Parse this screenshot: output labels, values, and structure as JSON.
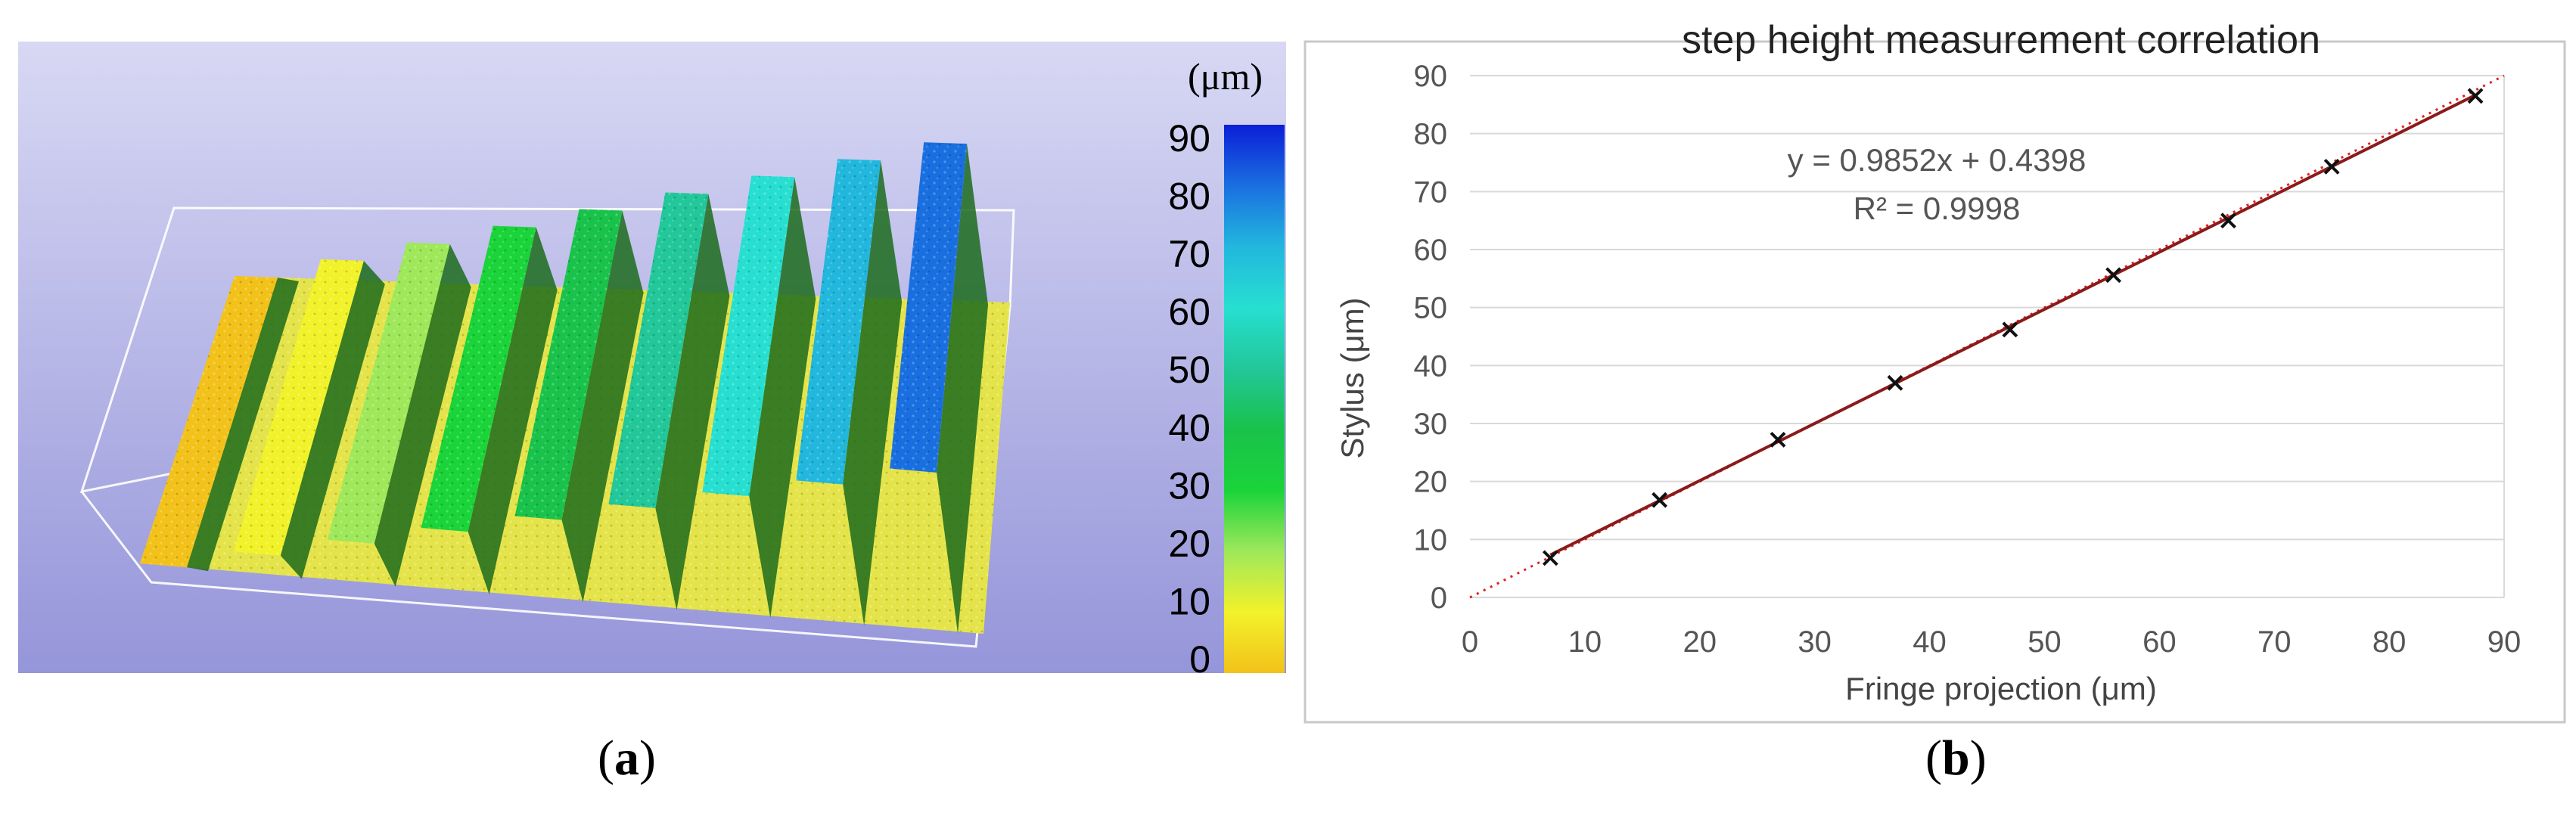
{
  "panel_a": {
    "label_open": "(",
    "label_letter": "a",
    "label_close": ")",
    "colorbar": {
      "unit": "(μm)",
      "ticks": [
        "90",
        "80",
        "70",
        "60",
        "50",
        "40",
        "30",
        "20",
        "10",
        "0"
      ],
      "colors": [
        "#0b1ed8",
        "#1a6fe0",
        "#22b7dd",
        "#26dfd0",
        "#22c79a",
        "#19c24a",
        "#1ad43a",
        "#9ee85a",
        "#f2f22a",
        "#f2c21a"
      ]
    },
    "step_heights_um": [
      0,
      10,
      20,
      30,
      40,
      50,
      60,
      70,
      80
    ],
    "background_color": "#a7a7e0"
  },
  "panel_b": {
    "label_open": "(",
    "label_letter": "b",
    "label_close": ")",
    "equation": "y = 0.9852x + 0.4398",
    "r_squared": "R² = 0.9998"
  },
  "chart_data": {
    "type": "scatter",
    "title": "step height measurement correlation",
    "xlabel": "Fringe projection (μm)",
    "ylabel": "Stylus (μm)",
    "xlim": [
      0,
      90
    ],
    "ylim": [
      0,
      90
    ],
    "xticks": [
      "0",
      "10",
      "20",
      "30",
      "40",
      "50",
      "60",
      "70",
      "80",
      "90"
    ],
    "yticks": [
      "0",
      "10",
      "20",
      "30",
      "40",
      "50",
      "60",
      "70",
      "80",
      "90"
    ],
    "grid": true,
    "x": [
      7,
      16.5,
      26.8,
      37,
      47,
      56,
      66,
      75,
      87.5
    ],
    "y": [
      6.8,
      16.8,
      27.2,
      37,
      46.2,
      55.6,
      65,
      74.3,
      86.5
    ],
    "trendline": {
      "slope": 0.9852,
      "intercept": 0.4398,
      "color": "#8b1a1a"
    },
    "reference_line": {
      "color": "#e02020",
      "style": "dotted"
    }
  }
}
